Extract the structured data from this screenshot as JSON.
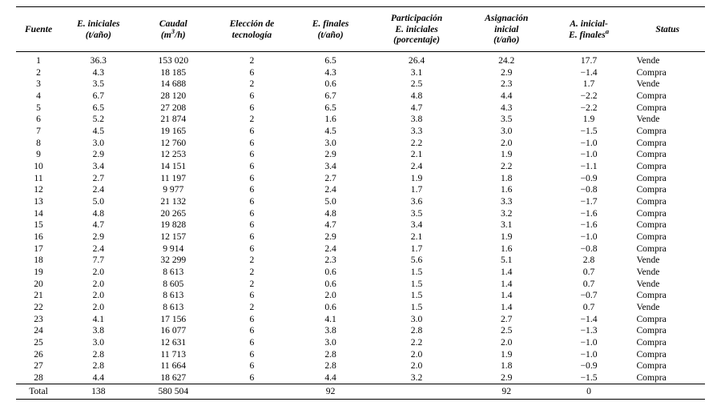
{
  "table": {
    "columns": [
      {
        "key": "fuente",
        "label": "Fuente",
        "align": "center",
        "width": "6%"
      },
      {
        "key": "e_ini",
        "label_html": "E. iniciales<br>(t/año)",
        "align": "center",
        "width": "10%"
      },
      {
        "key": "caudal",
        "label_html": "Caudal<br>(m<span class='sup'>3</span>/h)",
        "align": "center",
        "width": "10%"
      },
      {
        "key": "tec",
        "label_html": "Elección de<br>tecnología",
        "align": "center",
        "width": "11%"
      },
      {
        "key": "e_fin",
        "label_html": "E. finales<br>(t/año)",
        "align": "center",
        "width": "10%"
      },
      {
        "key": "part",
        "label_html": "Participación<br>E. iniciales<br>(porcentaje)",
        "align": "center",
        "width": "13%"
      },
      {
        "key": "asig",
        "label_html": "Asignación<br>inicial<br>(t/año)",
        "align": "center",
        "width": "11%"
      },
      {
        "key": "diff",
        "label_html": "A. inicial-<br>E. finales<span class='sup'>a</span>",
        "align": "center",
        "width": "11%"
      },
      {
        "key": "status",
        "label": "Status",
        "align": "left",
        "width": "10%"
      }
    ],
    "rows": [
      {
        "fuente": "1",
        "e_ini": "36.3",
        "caudal": "153 020",
        "tec": "2",
        "e_fin": "6.5",
        "part": "26.4",
        "asig": "24.2",
        "diff": "17.7",
        "status": "Vende"
      },
      {
        "fuente": "2",
        "e_ini": "4.3",
        "caudal": "18 185",
        "tec": "6",
        "e_fin": "4.3",
        "part": "3.1",
        "asig": "2.9",
        "diff": "−1.4",
        "status": "Compra"
      },
      {
        "fuente": "3",
        "e_ini": "3.5",
        "caudal": "14 688",
        "tec": "2",
        "e_fin": "0.6",
        "part": "2.5",
        "asig": "2.3",
        "diff": "1.7",
        "status": "Vende"
      },
      {
        "fuente": "4",
        "e_ini": "6.7",
        "caudal": "28 120",
        "tec": "6",
        "e_fin": "6.7",
        "part": "4.8",
        "asig": "4.4",
        "diff": "−2.2",
        "status": "Compra"
      },
      {
        "fuente": "5",
        "e_ini": "6.5",
        "caudal": "27 208",
        "tec": "6",
        "e_fin": "6.5",
        "part": "4.7",
        "asig": "4.3",
        "diff": "−2.2",
        "status": "Compra"
      },
      {
        "fuente": "6",
        "e_ini": "5.2",
        "caudal": "21 874",
        "tec": "2",
        "e_fin": "1.6",
        "part": "3.8",
        "asig": "3.5",
        "diff": "1.9",
        "status": "Vende"
      },
      {
        "fuente": "7",
        "e_ini": "4.5",
        "caudal": "19 165",
        "tec": "6",
        "e_fin": "4.5",
        "part": "3.3",
        "asig": "3.0",
        "diff": "−1.5",
        "status": "Compra"
      },
      {
        "fuente": "8",
        "e_ini": "3.0",
        "caudal": "12 760",
        "tec": "6",
        "e_fin": "3.0",
        "part": "2.2",
        "asig": "2.0",
        "diff": "−1.0",
        "status": "Compra"
      },
      {
        "fuente": "9",
        "e_ini": "2.9",
        "caudal": "12 253",
        "tec": "6",
        "e_fin": "2.9",
        "part": "2.1",
        "asig": "1.9",
        "diff": "−1.0",
        "status": "Compra"
      },
      {
        "fuente": "10",
        "e_ini": "3.4",
        "caudal": "14 151",
        "tec": "6",
        "e_fin": "3.4",
        "part": "2.4",
        "asig": "2.2",
        "diff": "−1.1",
        "status": "Compra"
      },
      {
        "fuente": "11",
        "e_ini": "2.7",
        "caudal": "11 197",
        "tec": "6",
        "e_fin": "2.7",
        "part": "1.9",
        "asig": "1.8",
        "diff": "−0.9",
        "status": "Compra"
      },
      {
        "fuente": "12",
        "e_ini": "2.4",
        "caudal": "9 977",
        "tec": "6",
        "e_fin": "2.4",
        "part": "1.7",
        "asig": "1.6",
        "diff": "−0.8",
        "status": "Compra"
      },
      {
        "fuente": "13",
        "e_ini": "5.0",
        "caudal": "21 132",
        "tec": "6",
        "e_fin": "5.0",
        "part": "3.6",
        "asig": "3.3",
        "diff": "−1.7",
        "status": "Compra"
      },
      {
        "fuente": "14",
        "e_ini": "4.8",
        "caudal": "20 265",
        "tec": "6",
        "e_fin": "4.8",
        "part": "3.5",
        "asig": "3.2",
        "diff": "−1.6",
        "status": "Compra"
      },
      {
        "fuente": "15",
        "e_ini": "4.7",
        "caudal": "19 828",
        "tec": "6",
        "e_fin": "4.7",
        "part": "3.4",
        "asig": "3.1",
        "diff": "−1.6",
        "status": "Compra"
      },
      {
        "fuente": "16",
        "e_ini": "2.9",
        "caudal": "12 157",
        "tec": "6",
        "e_fin": "2.9",
        "part": "2.1",
        "asig": "1.9",
        "diff": "−1.0",
        "status": "Compra"
      },
      {
        "fuente": "17",
        "e_ini": "2.4",
        "caudal": "9 914",
        "tec": "6",
        "e_fin": "2.4",
        "part": "1.7",
        "asig": "1.6",
        "diff": "−0.8",
        "status": "Compra"
      },
      {
        "fuente": "18",
        "e_ini": "7.7",
        "caudal": "32 299",
        "tec": "2",
        "e_fin": "2.3",
        "part": "5.6",
        "asig": "5.1",
        "diff": "2.8",
        "status": "Vende"
      },
      {
        "fuente": "19",
        "e_ini": "2.0",
        "caudal": "8 613",
        "tec": "2",
        "e_fin": "0.6",
        "part": "1.5",
        "asig": "1.4",
        "diff": "0.7",
        "status": "Vende"
      },
      {
        "fuente": "20",
        "e_ini": "2.0",
        "caudal": "8 605",
        "tec": "2",
        "e_fin": "0.6",
        "part": "1.5",
        "asig": "1.4",
        "diff": "0.7",
        "status": "Vende"
      },
      {
        "fuente": "21",
        "e_ini": "2.0",
        "caudal": "8 613",
        "tec": "6",
        "e_fin": "2.0",
        "part": "1.5",
        "asig": "1.4",
        "diff": "−0.7",
        "status": "Compra"
      },
      {
        "fuente": "22",
        "e_ini": "2.0",
        "caudal": "8 613",
        "tec": "2",
        "e_fin": "0.6",
        "part": "1.5",
        "asig": "1.4",
        "diff": "0.7",
        "status": "Vende"
      },
      {
        "fuente": "23",
        "e_ini": "4.1",
        "caudal": "17 156",
        "tec": "6",
        "e_fin": "4.1",
        "part": "3.0",
        "asig": "2.7",
        "diff": "−1.4",
        "status": "Compra"
      },
      {
        "fuente": "24",
        "e_ini": "3.8",
        "caudal": "16 077",
        "tec": "6",
        "e_fin": "3.8",
        "part": "2.8",
        "asig": "2.5",
        "diff": "−1.3",
        "status": "Compra"
      },
      {
        "fuente": "25",
        "e_ini": "3.0",
        "caudal": "12 631",
        "tec": "6",
        "e_fin": "3.0",
        "part": "2.2",
        "asig": "2.0",
        "diff": "−1.0",
        "status": "Compra"
      },
      {
        "fuente": "26",
        "e_ini": "2.8",
        "caudal": "11 713",
        "tec": "6",
        "e_fin": "2.8",
        "part": "2.0",
        "asig": "1.9",
        "diff": "−1.0",
        "status": "Compra"
      },
      {
        "fuente": "27",
        "e_ini": "2.8",
        "caudal": "11 664",
        "tec": "6",
        "e_fin": "2.8",
        "part": "2.0",
        "asig": "1.8",
        "diff": "−0.9",
        "status": "Compra"
      },
      {
        "fuente": "28",
        "e_ini": "4.4",
        "caudal": "18 627",
        "tec": "6",
        "e_fin": "4.4",
        "part": "3.2",
        "asig": "2.9",
        "diff": "−1.5",
        "status": "Compra"
      }
    ],
    "total": {
      "fuente": "Total",
      "e_ini": "138",
      "caudal": "580 504",
      "tec": "",
      "e_fin": "92",
      "part": "",
      "asig": "92",
      "diff": "0",
      "status": ""
    }
  }
}
